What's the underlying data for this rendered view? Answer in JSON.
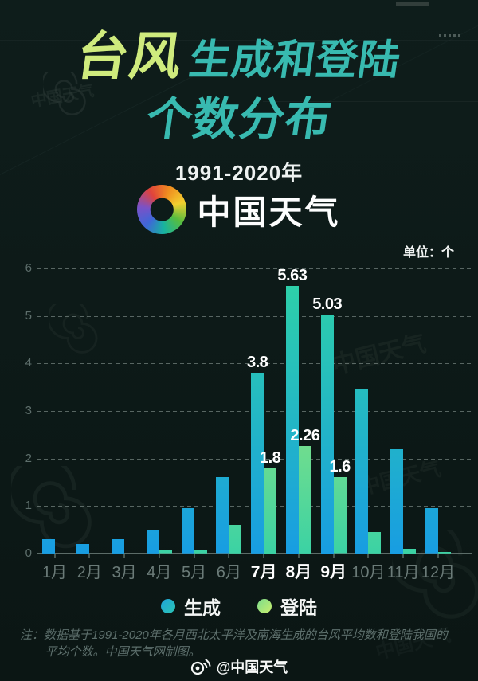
{
  "page": {
    "watermark": "中国天气"
  },
  "header": {
    "title_accent": "台风",
    "title_rest": "生成和登陆",
    "title_line2": "个数分布",
    "period": "1991-2020年",
    "brand": "中国天气"
  },
  "colors": {
    "background": "#0d1a18",
    "title_accent": "#cfeb7d",
    "title_teal": "#38bab0",
    "generated_bottom": "#189de2",
    "generated_top": "#2fd3a5",
    "landfall_bottom": "#3bd2a4",
    "landfall_top": "#c6ef6a"
  },
  "chart_data": {
    "type": "bar",
    "title": "台风生成和登陆个数分布",
    "subtitle": "1991-2020年",
    "unit_label": "单位：个",
    "categories": [
      "1月",
      "2月",
      "3月",
      "4月",
      "5月",
      "6月",
      "7月",
      "8月",
      "9月",
      "10月",
      "11月",
      "12月"
    ],
    "series": [
      {
        "key": "generated",
        "name": "生成",
        "values": [
          0.3,
          0.2,
          0.3,
          0.5,
          0.95,
          1.6,
          3.8,
          5.63,
          5.03,
          3.45,
          2.2,
          0.95
        ],
        "labels": [
          null,
          null,
          null,
          null,
          null,
          null,
          "3.8",
          "5.63",
          "5.03",
          null,
          null,
          null
        ]
      },
      {
        "key": "landfall",
        "name": "登陆",
        "values": [
          0,
          0,
          0,
          0.06,
          0.08,
          0.6,
          1.8,
          2.26,
          1.6,
          0.45,
          0.1,
          0.03
        ],
        "labels": [
          null,
          null,
          null,
          null,
          null,
          null,
          "1.8",
          "2.26",
          "1.6",
          null,
          null,
          null
        ]
      }
    ],
    "ylim": [
      0,
      6
    ],
    "yticks": [
      0,
      1,
      2,
      3,
      4,
      5,
      6
    ],
    "grid": "dashed-horizontal",
    "legend_position": "bottom",
    "highlight_categories": [
      "7月",
      "8月",
      "9月"
    ]
  },
  "note": {
    "prefix": "注：",
    "body": "数据基于1991-2020年各月西北太平洋及南海生成的台风平均数和登陆我国的平均个数。中国天气网制图。"
  },
  "footer": {
    "handle": "@中国天气"
  }
}
